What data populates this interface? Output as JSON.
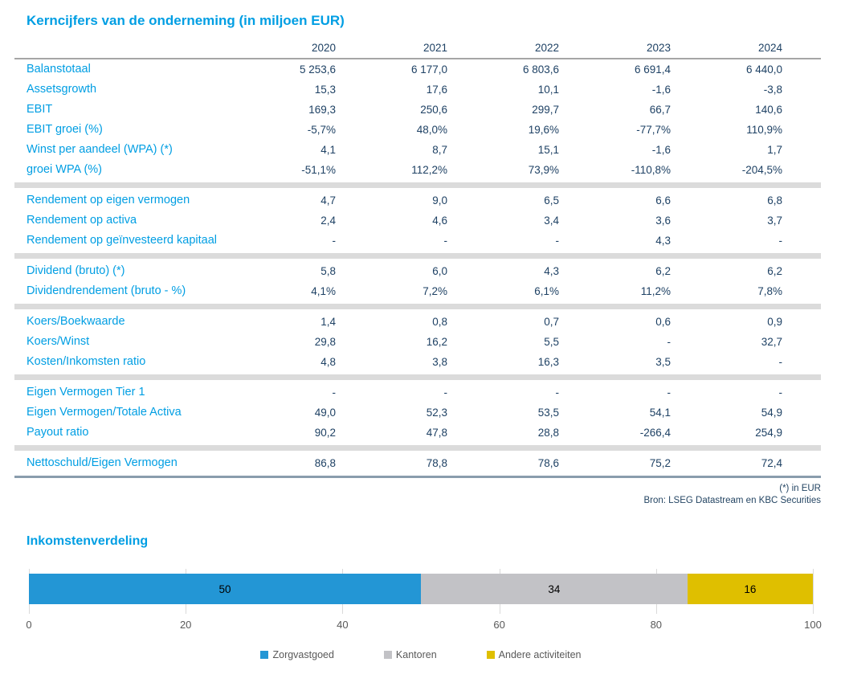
{
  "colors": {
    "accent_blue": "#009EE3",
    "value_navy": "#1E4164",
    "separator_gray": "#DBDBDB",
    "bottom_border": "#8A9DAD"
  },
  "title": "Kerncijfers van de onderneming (in miljoen EUR)",
  "table": {
    "years": [
      "2020",
      "2021",
      "2022",
      "2023",
      "2024"
    ],
    "sections": [
      {
        "rows": [
          {
            "label": "Balanstotaal",
            "values": [
              "5 253,6",
              "6 177,0",
              "6 803,6",
              "6 691,4",
              "6 440,0"
            ]
          },
          {
            "label": "Assetsgrowth",
            "values": [
              "15,3",
              "17,6",
              "10,1",
              "-1,6",
              "-3,8"
            ]
          },
          {
            "label": "EBIT",
            "values": [
              "169,3",
              "250,6",
              "299,7",
              "66,7",
              "140,6"
            ]
          },
          {
            "label": "EBIT groei (%)",
            "values": [
              "-5,7%",
              "48,0%",
              "19,6%",
              "-77,7%",
              "110,9%"
            ]
          },
          {
            "label": "Winst per aandeel (WPA) (*)",
            "values": [
              "4,1",
              "8,7",
              "15,1",
              "-1,6",
              "1,7"
            ]
          },
          {
            "label": "groei WPA (%)",
            "values": [
              "-51,1%",
              "112,2%",
              "73,9%",
              "-110,8%",
              "-204,5%"
            ]
          }
        ]
      },
      {
        "rows": [
          {
            "label": "Rendement op eigen vermogen",
            "values": [
              "4,7",
              "9,0",
              "6,5",
              "6,6",
              "6,8"
            ]
          },
          {
            "label": "Rendement op activa",
            "values": [
              "2,4",
              "4,6",
              "3,4",
              "3,6",
              "3,7"
            ]
          },
          {
            "label": "Rendement op geïnvesteerd kapitaal",
            "values": [
              "-",
              "-",
              "-",
              "4,3",
              "-"
            ]
          }
        ]
      },
      {
        "rows": [
          {
            "label": "Dividend (bruto) (*)",
            "values": [
              "5,8",
              "6,0",
              "4,3",
              "6,2",
              "6,2"
            ]
          },
          {
            "label": "Dividendrendement (bruto - %)",
            "values": [
              "4,1%",
              "7,2%",
              "6,1%",
              "11,2%",
              "7,8%"
            ]
          }
        ]
      },
      {
        "rows": [
          {
            "label": "Koers/Boekwaarde",
            "values": [
              "1,4",
              "0,8",
              "0,7",
              "0,6",
              "0,9"
            ]
          },
          {
            "label": "Koers/Winst",
            "values": [
              "29,8",
              "16,2",
              "5,5",
              "-",
              "32,7"
            ]
          },
          {
            "label": "Kosten/Inkomsten ratio",
            "values": [
              "4,8",
              "3,8",
              "16,3",
              "3,5",
              "-"
            ]
          }
        ]
      },
      {
        "rows": [
          {
            "label": "Eigen Vermogen Tier 1",
            "values": [
              "-",
              "-",
              "-",
              "-",
              "-"
            ]
          },
          {
            "label": "Eigen Vermogen/Totale Activa",
            "values": [
              "49,0",
              "52,3",
              "53,5",
              "54,1",
              "54,9"
            ]
          },
          {
            "label": "Payout ratio",
            "values": [
              "90,2",
              "47,8",
              "28,8",
              "-266,4",
              "254,9"
            ]
          }
        ]
      },
      {
        "rows": [
          {
            "label": "Nettoschuld/Eigen Vermogen",
            "values": [
              "86,8",
              "78,8",
              "78,6",
              "75,2",
              "72,4"
            ]
          }
        ]
      }
    ]
  },
  "footnotes": [
    "(*) in EUR",
    "Bron: LSEG Datastream en KBC Securities"
  ],
  "chart_data": {
    "type": "bar",
    "orientation": "horizontal-stacked",
    "title": "Inkomstenverdeling",
    "series": [
      {
        "name": "Zorgvastgoed",
        "value": 50,
        "label": "50",
        "color": "#2396D5"
      },
      {
        "name": "Kantoren",
        "value": 34,
        "label": "34",
        "color": "#C2C2C6"
      },
      {
        "name": "Andere activiteiten",
        "value": 16,
        "label": "16",
        "color": "#DFBF00"
      }
    ],
    "xlim": [
      0,
      100
    ],
    "xticks": [
      "0",
      "20",
      "40",
      "60",
      "80",
      "100"
    ],
    "grid": true,
    "legend_position": "bottom"
  }
}
